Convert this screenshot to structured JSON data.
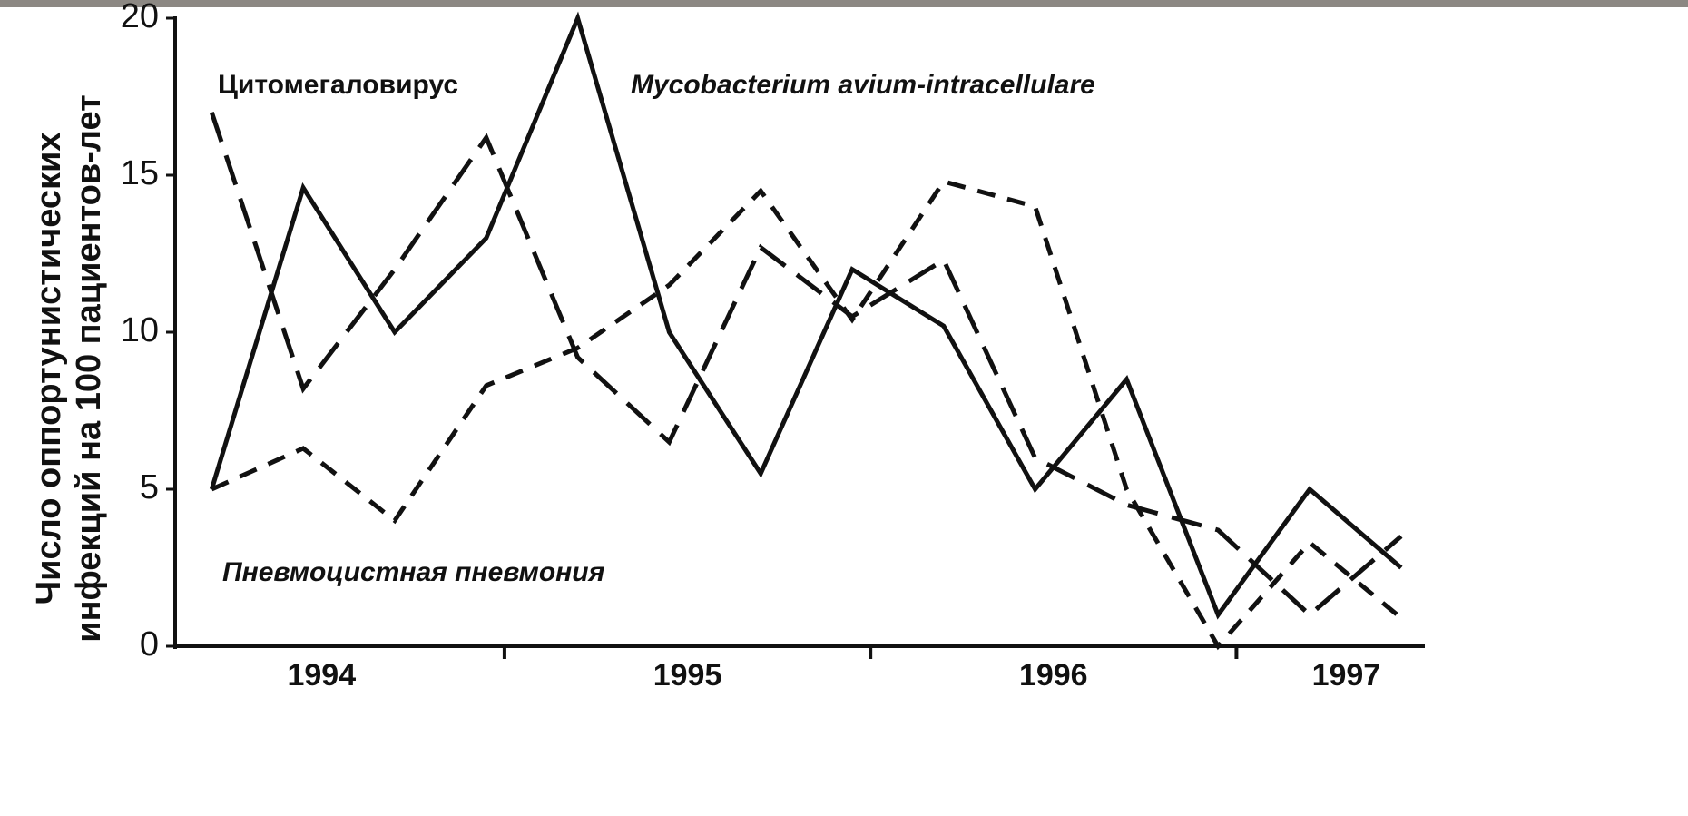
{
  "chart_data": {
    "type": "line",
    "ylabel": [
      "Число оппортунистических",
      "инфекций на 100 пациентов-лет"
    ],
    "x": [
      1994.2,
      1994.45,
      1994.7,
      1994.95,
      1995.2,
      1995.45,
      1995.7,
      1995.95,
      1996.2,
      1996.45,
      1996.7,
      1996.95,
      1997.2,
      1997.45
    ],
    "xlim": [
      1994.1,
      1997.49
    ],
    "xticks": [
      {
        "value": 1994.5,
        "label": "1994"
      },
      {
        "value": 1995.5,
        "label": "1995"
      },
      {
        "value": 1996.5,
        "label": "1996"
      },
      {
        "value": 1997.3,
        "label": "1997"
      }
    ],
    "x_boundaries": [
      1995,
      1996,
      1997
    ],
    "ylim": [
      0,
      20
    ],
    "yticks": [
      0,
      5,
      10,
      15,
      20
    ],
    "series": [
      {
        "name": "Mycobacterium avium-intracellulare",
        "color": "#111111",
        "style": "solid",
        "values": [
          5,
          14.6,
          10,
          13,
          20,
          10,
          5.5,
          12,
          10.2,
          5,
          8.5,
          1,
          5,
          2.5
        ]
      },
      {
        "name": "Цитомегаловирус",
        "color": "#111111",
        "style": "long-dash",
        "values": [
          17,
          8.2,
          12,
          16.2,
          9.2,
          6.5,
          12.7,
          10.5,
          12.3,
          6,
          4.5,
          3.7,
          1.0,
          3.5
        ]
      },
      {
        "name": "Пневмоцистная пневмония",
        "color": "#111111",
        "style": "short-dash",
        "values": [
          5,
          6.3,
          4,
          8.3,
          9.5,
          11.5,
          14.5,
          10.4,
          14.8,
          14,
          5,
          0,
          3.3,
          0.9
        ]
      }
    ]
  }
}
